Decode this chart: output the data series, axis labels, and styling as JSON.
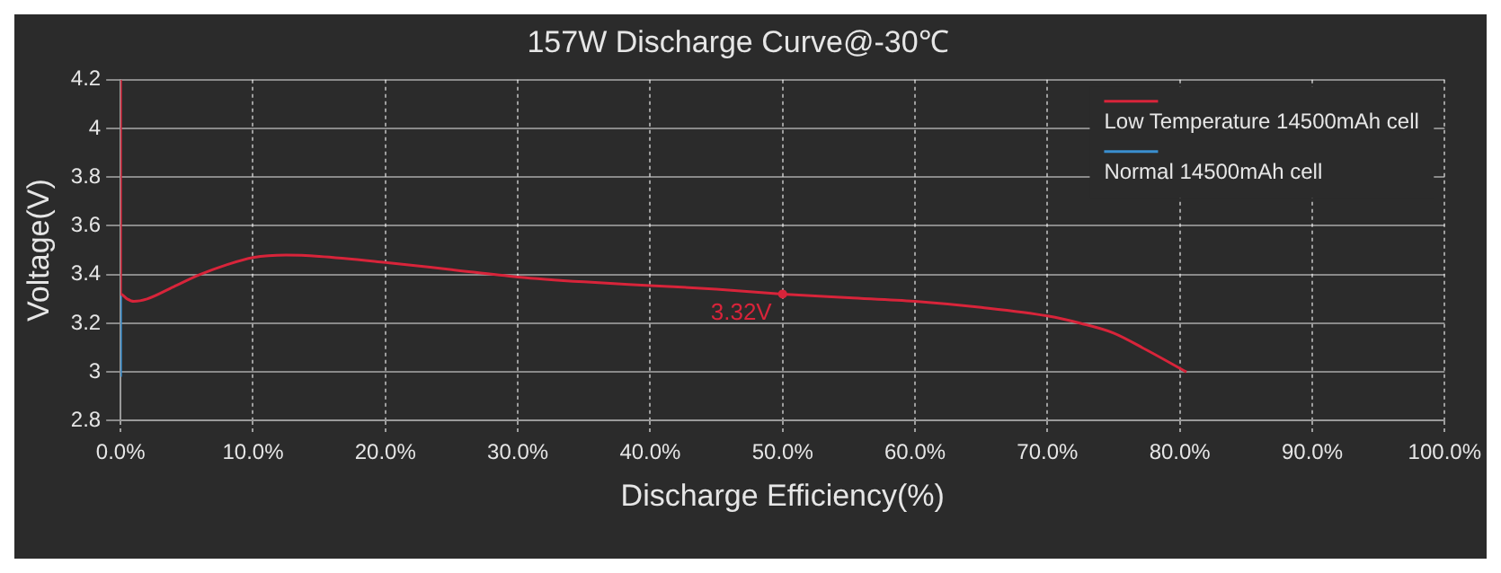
{
  "chart_data": {
    "type": "line",
    "title": "157W Discharge Curve@-30℃",
    "xlabel": "Discharge Efficiency(%)",
    "ylabel": "Voltage(V)",
    "series": [
      {
        "name": "Low Temperature 14500mAh cell",
        "color": "#d8243a",
        "x": [
          0,
          0,
          0.5,
          1,
          2,
          4,
          6,
          8,
          10,
          12.5,
          15,
          20,
          25,
          30,
          35,
          40,
          45,
          50,
          55,
          60,
          65,
          70,
          72.5,
          75,
          77.5,
          80.5
        ],
        "values": [
          4.2,
          3.32,
          3.3,
          3.29,
          3.3,
          3.35,
          3.4,
          3.44,
          3.47,
          3.48,
          3.475,
          3.45,
          3.42,
          3.39,
          3.37,
          3.355,
          3.34,
          3.32,
          3.305,
          3.29,
          3.265,
          3.23,
          3.2,
          3.16,
          3.09,
          3.0
        ]
      },
      {
        "name": "Normal 14500mAh cell",
        "color": "#3a8fd0",
        "x": [
          0,
          0
        ],
        "values": [
          3.32,
          2.98
        ]
      }
    ],
    "annotations": [
      {
        "text": "3.32V",
        "x": 50,
        "y": 3.32
      }
    ],
    "xlim": [
      0,
      100
    ],
    "xticks": [
      {
        "value": 0,
        "label": "0.0%"
      },
      {
        "value": 10,
        "label": "10.0%"
      },
      {
        "value": 20,
        "label": "20.0%"
      },
      {
        "value": 30,
        "label": "30.0%"
      },
      {
        "value": 40,
        "label": "40.0%"
      },
      {
        "value": 50,
        "label": "50.0%"
      },
      {
        "value": 60,
        "label": "60.0%"
      },
      {
        "value": 70,
        "label": "70.0%"
      },
      {
        "value": 80,
        "label": "80.0%"
      },
      {
        "value": 90,
        "label": "90.0%"
      },
      {
        "value": 100,
        "label": "100.0%"
      }
    ],
    "ylim": [
      2.8,
      4.2
    ],
    "yticks": [
      2.8,
      3,
      3.2,
      3.4,
      3.6,
      3.8,
      4,
      4.2
    ],
    "grid": true,
    "legend": "top right",
    "marker": "none",
    "line_style": "solid"
  }
}
